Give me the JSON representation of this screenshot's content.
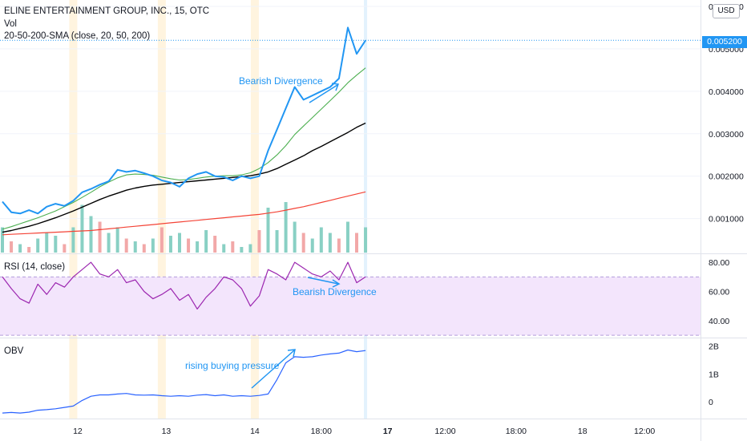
{
  "header": {
    "title": "ELINE ENTERTAINMENT GROUP, INC., 15, OTC",
    "vol_label": "Vol",
    "sma_label": "20-50-200-SMA (close, 20, 50, 200)",
    "currency_button": "USD",
    "current_price": "0.005200"
  },
  "colors": {
    "price_line": "#2196f3",
    "sma20": "#4caf50",
    "sma50": "#000000",
    "sma200": "#f44336",
    "rsi_line": "#9c27b0",
    "rsi_band": "#f3e5fc",
    "obv_line": "#2962ff",
    "vol_up": "#89d0c4",
    "vol_down": "#f2a8a8",
    "session_shade": "#fff4df",
    "annotation": "#2196f3"
  },
  "chart_data": [
    {
      "type": "line",
      "pane": "price",
      "y_ticks": [
        "0.006000",
        "0.005000",
        "0.004000",
        "0.003000",
        "0.002000",
        "0.001000"
      ],
      "y_tick_values": [
        0.006,
        0.005,
        0.004,
        0.003,
        0.002,
        0.001
      ],
      "ylim": [
        0.0002,
        0.00615
      ],
      "x_ticks": [
        "12",
        "13",
        "14",
        "18:00",
        "17",
        "12:00",
        "18:00",
        "18",
        "12:00"
      ],
      "x_tick_bars": [
        8.5,
        18.5,
        28.5,
        36,
        43.5,
        50,
        58,
        65.5,
        72.5
      ],
      "bold_ticks": [
        false,
        false,
        false,
        false,
        true,
        false,
        false,
        false,
        false
      ],
      "session_bars": [
        8,
        18,
        28.5
      ],
      "price": [
        0.0014,
        0.00115,
        0.00112,
        0.0012,
        0.00112,
        0.00128,
        0.00135,
        0.0013,
        0.00142,
        0.00162,
        0.0017,
        0.0018,
        0.00188,
        0.00215,
        0.0021,
        0.00213,
        0.00207,
        0.002,
        0.0019,
        0.00185,
        0.00175,
        0.00195,
        0.00205,
        0.0021,
        0.002,
        0.00198,
        0.0019,
        0.002,
        0.00195,
        0.002,
        0.0026,
        0.0031,
        0.0036,
        0.0041,
        0.0038,
        0.0039,
        0.004,
        0.0041,
        0.0043,
        0.0055,
        0.00488,
        0.0052
      ],
      "sma20": [
        0.00075,
        0.00081,
        0.00088,
        0.00095,
        0.00102,
        0.0011,
        0.00118,
        0.00128,
        0.00138,
        0.0015,
        0.00162,
        0.00175,
        0.00186,
        0.00196,
        0.00203,
        0.00205,
        0.00204,
        0.00202,
        0.00198,
        0.00194,
        0.00191,
        0.00192,
        0.00195,
        0.00198,
        0.002,
        0.00201,
        0.00201,
        0.00203,
        0.00208,
        0.00218,
        0.00232,
        0.0025,
        0.00272,
        0.00298,
        0.00318,
        0.00338,
        0.00358,
        0.00378,
        0.00398,
        0.0042,
        0.00438,
        0.00455
      ],
      "sma50": [
        0.00068,
        0.00072,
        0.00077,
        0.00082,
        0.00088,
        0.00095,
        0.00102,
        0.0011,
        0.00118,
        0.00127,
        0.00136,
        0.00145,
        0.00153,
        0.0016,
        0.00167,
        0.00172,
        0.00176,
        0.00179,
        0.00181,
        0.00183,
        0.00185,
        0.00187,
        0.00189,
        0.00191,
        0.00193,
        0.00195,
        0.00197,
        0.00199,
        0.00201,
        0.00205,
        0.0021,
        0.00218,
        0.00228,
        0.00238,
        0.00248,
        0.0026,
        0.0027,
        0.00281,
        0.00292,
        0.00303,
        0.00315,
        0.00325
      ],
      "sma200": [
        0.00062,
        0.00063,
        0.00064,
        0.00065,
        0.00066,
        0.00067,
        0.00068,
        0.00069,
        0.0007,
        0.00071,
        0.00072,
        0.00074,
        0.00076,
        0.00078,
        0.0008,
        0.00082,
        0.00084,
        0.00086,
        0.00088,
        0.0009,
        0.00092,
        0.00094,
        0.00096,
        0.00098,
        0.001,
        0.00102,
        0.00104,
        0.00106,
        0.00108,
        0.0011,
        0.00113,
        0.00116,
        0.0012,
        0.00124,
        0.00128,
        0.00133,
        0.00138,
        0.00143,
        0.00148,
        0.00153,
        0.00158,
        0.00163
      ],
      "volume": [
        0.45,
        0.2,
        0.15,
        0.1,
        0.25,
        0.35,
        0.3,
        0.15,
        0.45,
        0.85,
        0.65,
        0.55,
        0.35,
        0.45,
        0.25,
        0.2,
        0.15,
        0.25,
        0.45,
        0.3,
        0.35,
        0.25,
        0.2,
        0.4,
        0.3,
        0.15,
        0.2,
        0.1,
        0.15,
        0.4,
        0.8,
        0.4,
        0.9,
        0.55,
        0.35,
        0.25,
        0.45,
        0.35,
        0.25,
        0.55,
        0.35,
        0.45
      ],
      "volume_up": [
        true,
        false,
        true,
        false,
        true,
        true,
        true,
        false,
        true,
        true,
        true,
        false,
        true,
        true,
        false,
        true,
        false,
        true,
        false,
        true,
        true,
        false,
        true,
        true,
        false,
        true,
        false,
        true,
        true,
        false,
        true,
        true,
        true,
        true,
        false,
        true,
        true,
        true,
        false,
        true,
        false,
        true
      ],
      "annotations": [
        {
          "text": "Bearish Divergence"
        }
      ]
    },
    {
      "type": "line",
      "pane": "rsi",
      "title": "RSI (14, close)",
      "y_ticks": [
        "80.00",
        "60.00",
        "40.00"
      ],
      "y_tick_values": [
        80,
        60,
        40
      ],
      "ylim": [
        29,
        85
      ],
      "band": [
        30,
        70
      ],
      "values": [
        70,
        62,
        55,
        52,
        65,
        58,
        66,
        63,
        70,
        75,
        80,
        72,
        70,
        75,
        66,
        68,
        60,
        55,
        58,
        62,
        54,
        58,
        48,
        56,
        62,
        70,
        68,
        62,
        50,
        57,
        75,
        72,
        68,
        80,
        76,
        72,
        70,
        74,
        68,
        80,
        66,
        70
      ],
      "annotations": [
        {
          "text": "Bearish Divergence"
        }
      ]
    },
    {
      "type": "line",
      "pane": "obv",
      "title": "OBV",
      "y_ticks": [
        "2B",
        "1B",
        "0"
      ],
      "y_tick_values": [
        2,
        1,
        0
      ],
      "ylim": [
        -0.6,
        2.25
      ],
      "values": [
        -0.4,
        -0.38,
        -0.4,
        -0.37,
        -0.3,
        -0.28,
        -0.25,
        -0.2,
        -0.15,
        0.05,
        0.2,
        0.25,
        0.25,
        0.28,
        0.3,
        0.25,
        0.24,
        0.25,
        0.22,
        0.2,
        0.22,
        0.2,
        0.24,
        0.26,
        0.22,
        0.25,
        0.2,
        0.22,
        0.2,
        0.23,
        0.28,
        0.8,
        1.4,
        1.62,
        1.6,
        1.62,
        1.68,
        1.72,
        1.75,
        1.86,
        1.8,
        1.84
      ],
      "annotations": [
        {
          "text": "rising buying pressure"
        }
      ]
    }
  ]
}
